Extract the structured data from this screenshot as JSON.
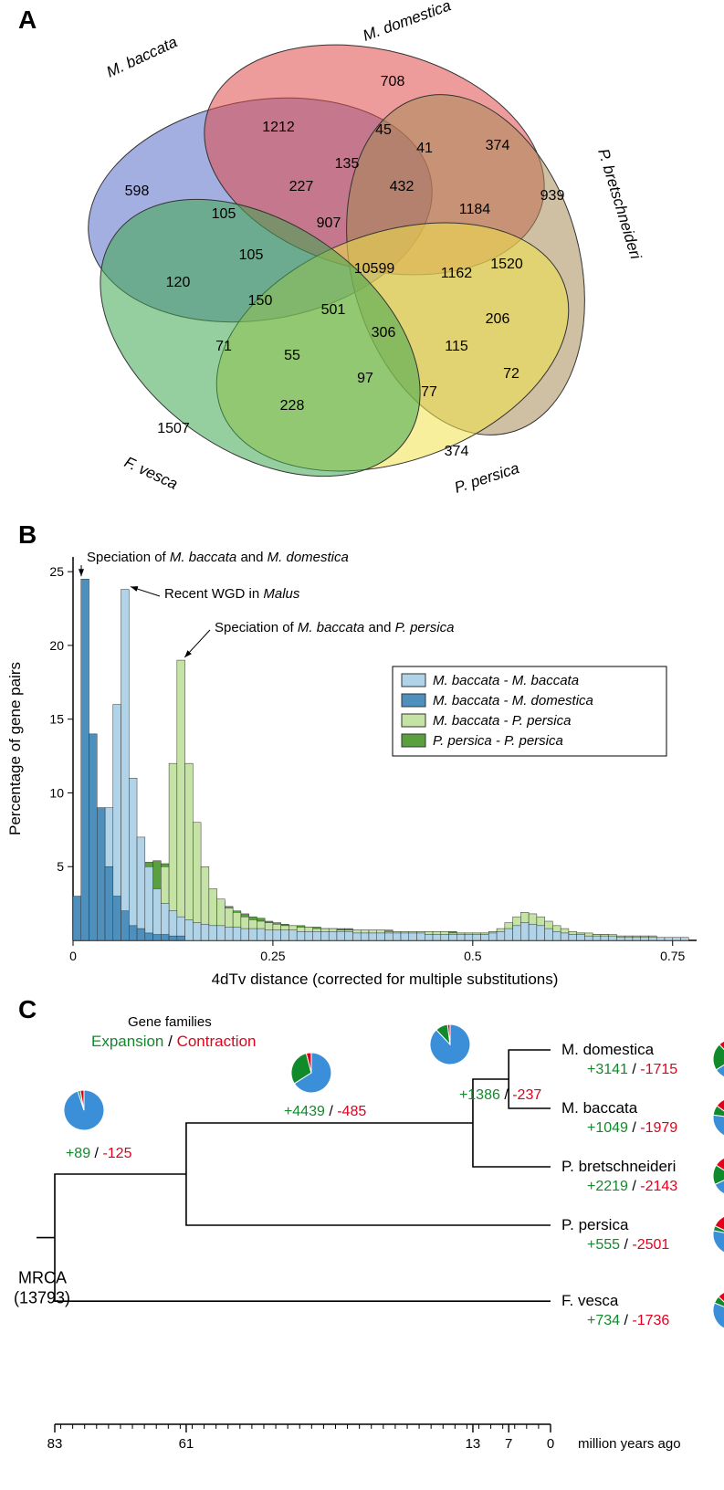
{
  "panelA": {
    "label": "A",
    "species": {
      "mbaccata": "M. baccata",
      "mdomestica": "M. domestica",
      "pbretschneideri": "P. bretschneideri",
      "ppersica": "P. persica",
      "fvesca": "F. vesca"
    },
    "colors": {
      "mbaccata": "#5a6ec9",
      "mdomestica": "#e04848",
      "pbretschneideri": "#a88a58",
      "ppersica": "#f1e24a",
      "fvesca": "#3fa850"
    },
    "opacity": 0.55,
    "values": {
      "mb": 598,
      "md": 708,
      "pb": 939,
      "pp": 374,
      "fv": 1507,
      "mb_md": 1212,
      "mb_fv": 120,
      "mb_pp": 105,
      "md_pb": 374,
      "md_pp": 45,
      "pb_pp": 72,
      "fv_pp": 228,
      "fv_pb": 71,
      "mb_md_pp": 227,
      "mb_md_fv": 135,
      "mb_md_pb": 41,
      "mb_fv_pp": 105,
      "mb_pb_pp": 907,
      "md_pb_pp": 1184,
      "md_pb_fv": 432,
      "fv_pb_pp": 206,
      "mb_md_fv_pp": 150,
      "mb_md_pb_pp": 1162,
      "mb_md_pb_fv": 501,
      "mb_fv_pb_pp": 306,
      "md_fv_pb_pp": 1520,
      "all": 10599,
      "extra1": 55,
      "extra2": 97,
      "extra3": 77,
      "extra4": 115
    }
  },
  "panelB": {
    "label": "B",
    "colors": {
      "mb_mb": "#b1d3e8",
      "mb_md": "#4d8fbd",
      "mb_pp": "#c4e3a4",
      "pp_pp": "#5aa03e",
      "bar_stroke": "#333333"
    },
    "axes": {
      "x": {
        "label": "4dTv distance (corrected for multiple substitutions)",
        "min": 0,
        "max": 0.78,
        "ticks": [
          0,
          0.25,
          0.5,
          0.75
        ]
      },
      "y": {
        "label": "Percentage of gene pairs",
        "min": 0,
        "max": 26,
        "ticks": [
          5,
          10,
          15,
          20,
          25
        ]
      }
    },
    "legend": [
      {
        "key": "mb_mb",
        "label": "M. baccata - M. baccata"
      },
      {
        "key": "mb_md",
        "label": "M. baccata - M. domestica"
      },
      {
        "key": "mb_pp",
        "label": "M. baccata - P. persica"
      },
      {
        "key": "pp_pp",
        "label": "P. persica - P. persica"
      }
    ],
    "annotations": [
      {
        "text_prefix": "Speciation  of ",
        "it1": "M. baccata",
        "mid": " and  ",
        "it2": "M. domestica",
        "x": 0.008,
        "arrow_to_y": 24.5
      },
      {
        "text_prefix": "Recent WGD in ",
        "it1": "Malus",
        "mid": "",
        "it2": "",
        "x": 0.065,
        "arrow_to_y": 23.8
      },
      {
        "text_prefix": "Speciation  of ",
        "it1": "M. baccata",
        "mid": "  and ",
        "it2": "P. persica",
        "x": 0.135,
        "arrow_to_y": 19
      }
    ],
    "bin_width": 0.01,
    "series": {
      "mb_md": [
        3,
        24.5,
        14,
        9,
        5,
        3,
        2,
        1,
        0.8,
        0.5,
        0.4,
        0.4,
        0.3,
        0.3
      ],
      "mb_mb": [
        1,
        1.5,
        3,
        5,
        9,
        16,
        23.8,
        11,
        7,
        5,
        3.5,
        2.5,
        2,
        1.6,
        1.4,
        1.2,
        1.1,
        1,
        1,
        0.9,
        0.9,
        0.8,
        0.8,
        0.8,
        0.7,
        0.7,
        0.7,
        0.7,
        0.6,
        0.6,
        0.6,
        0.6,
        0.6,
        0.6,
        0.6,
        0.5,
        0.5,
        0.5,
        0.5,
        0.5,
        0.5,
        0.5,
        0.5,
        0.5,
        0.4,
        0.4,
        0.4,
        0.4,
        0.4,
        0.4,
        0.4,
        0.4,
        0.5,
        0.6,
        0.8,
        1,
        1.2,
        1.1,
        1,
        0.8,
        0.6,
        0.5,
        0.4,
        0.4,
        0.3,
        0.3,
        0.3,
        0.3,
        0.2,
        0.2,
        0.2,
        0.2,
        0.2,
        0.2,
        0.2,
        0.2,
        0.2
      ],
      "mb_pp": [
        0,
        0,
        0,
        0,
        0,
        0,
        0,
        0,
        0.5,
        1,
        2,
        5,
        12,
        19,
        12,
        8,
        5,
        3.5,
        2.8,
        2.2,
        1.9,
        1.6,
        1.4,
        1.3,
        1.2,
        1.1,
        1,
        1,
        0.9,
        0.9,
        0.8,
        0.8,
        0.8,
        0.7,
        0.7,
        0.7,
        0.7,
        0.7,
        0.7,
        0.6,
        0.6,
        0.6,
        0.6,
        0.6,
        0.6,
        0.6,
        0.6,
        0.5,
        0.5,
        0.5,
        0.5,
        0.5,
        0.6,
        0.8,
        1.2,
        1.6,
        1.9,
        1.8,
        1.6,
        1.3,
        1,
        0.8,
        0.6,
        0.5,
        0.5,
        0.4,
        0.4,
        0.4,
        0.3,
        0.3,
        0.3,
        0.3,
        0.3,
        0.2,
        0.2,
        0.2,
        0.2
      ],
      "pp_pp": [
        0,
        0,
        0.5,
        1.5,
        2.5,
        4,
        5,
        5.2,
        5.2,
        5.3,
        5.4,
        5.2,
        5,
        4.5,
        4,
        3.5,
        3.2,
        3,
        2.6,
        2.3,
        2,
        1.8,
        1.6,
        1.5,
        1.3,
        1.2,
        1.1,
        1,
        1,
        0.9,
        0.9,
        0.8,
        0.8,
        0.8,
        0.8,
        0.7,
        0.7,
        0.7,
        0.7,
        0.7,
        0.6,
        0.6,
        0.6,
        0.6,
        0.6,
        0.6,
        0.6,
        0.6,
        0.5,
        0.5,
        0.5,
        0.5,
        0.6,
        0.7,
        0.9,
        1.1,
        1.3,
        1.2,
        1.1,
        0.9,
        0.7,
        0.6,
        0.5,
        0.5,
        0.4,
        0.4,
        0.4,
        0.3,
        0.3,
        0.3,
        0.3,
        0.3,
        0.3,
        0.2,
        0.2,
        0.2,
        0.2
      ]
    }
  },
  "panelC": {
    "label": "C",
    "header": {
      "line1": "Gene families",
      "exp": "Expansion",
      "sep": " / ",
      "con": "Contraction"
    },
    "colors": {
      "pie_contracted": "#e4001b",
      "pie_expanded": "#118a2c",
      "pie_other": "#3b8fd9",
      "branch": "#000"
    },
    "mrca": {
      "label": "MRCA",
      "count": "(13793)"
    },
    "nodes_internal": [
      {
        "exp": "+89",
        "con": "-125",
        "pie": {
          "exp": 2,
          "con": 3,
          "other": 95
        }
      },
      {
        "exp": "+4439",
        "con": "-485",
        "pie": {
          "exp": 30,
          "con": 4,
          "other": 66
        }
      },
      {
        "exp": "+1386",
        "con": "-237",
        "pie": {
          "exp": 10,
          "con": 2,
          "other": 88
        }
      }
    ],
    "tips": [
      {
        "name": "M. domestica",
        "exp": "+3141",
        "con": "-1715",
        "pie": {
          "exp": 22,
          "con": 12,
          "other": 66
        }
      },
      {
        "name": "M. baccata",
        "exp": "+1049",
        "con": "-1979",
        "pie": {
          "exp": 8,
          "con": 15,
          "other": 77
        }
      },
      {
        "name": "P. bretschneideri",
        "exp": "+2219",
        "con": "-2143",
        "pie": {
          "exp": 16,
          "con": 16,
          "other": 68
        }
      },
      {
        "name": "P. persica",
        "exp": "+555",
        "con": "-2501",
        "pie": {
          "exp": 4,
          "con": 18,
          "other": 78
        }
      },
      {
        "name": "F. vesca",
        "exp": "+734",
        "con": "-1736",
        "pie": {
          "exp": 6,
          "con": 13,
          "other": 81
        }
      }
    ],
    "timeline": {
      "min": 0,
      "max": 83,
      "ticks": [
        83,
        61,
        13,
        7,
        0
      ],
      "label": "million years ago"
    }
  }
}
